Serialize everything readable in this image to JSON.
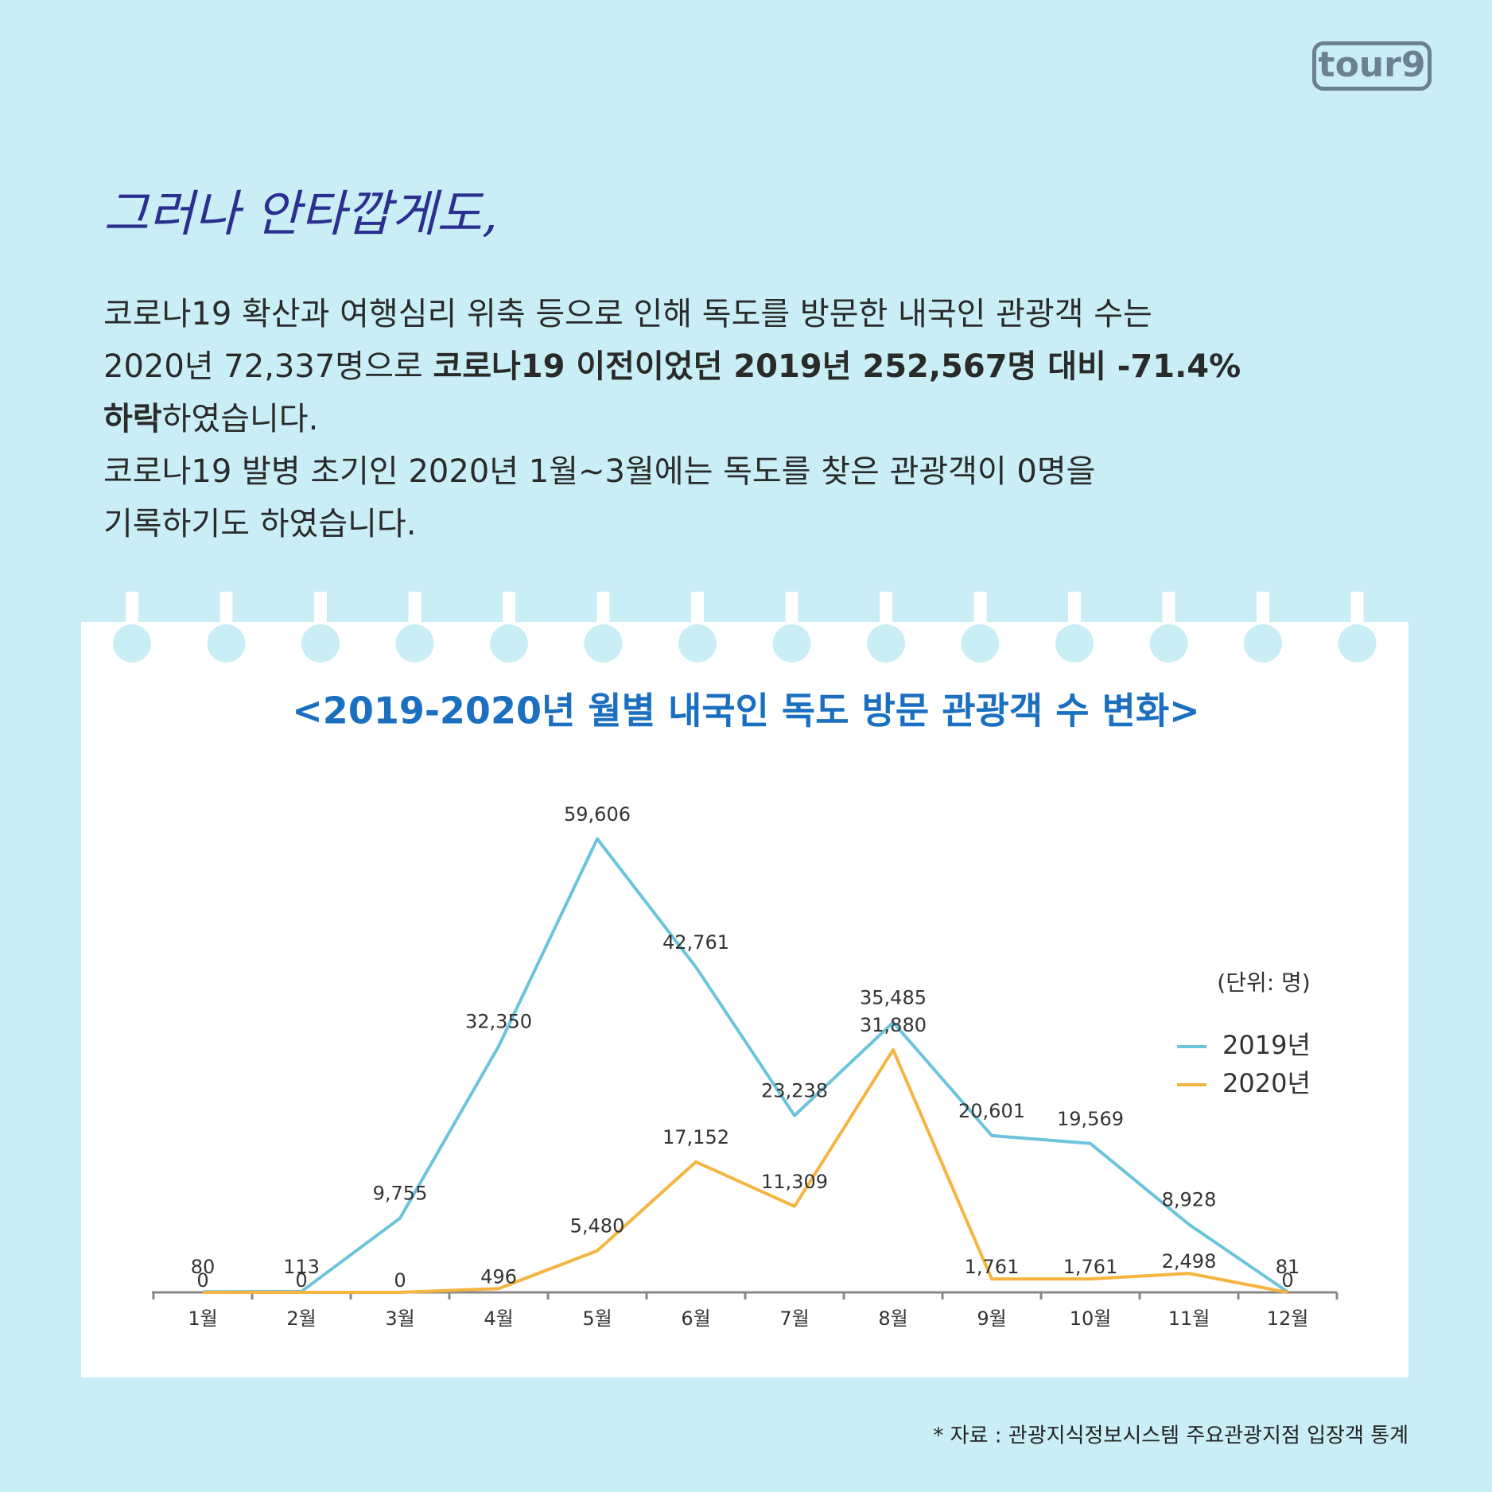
{
  "logo": "tour9",
  "heading": "그러나 안타깝게도,",
  "body": [
    [
      {
        "text": "코로나19 확산과 여행심리 위축 등으로 인해 독도를 방문한 내국인 관광객 수는"
      }
    ],
    [
      {
        "text": "2020년 72,337명으로 "
      },
      {
        "text": "코로나19 이전이었던 2019년 252,567명 대비 -71.4%",
        "bold": true
      }
    ],
    [
      {
        "text": "하락",
        "bold": true
      },
      {
        "text": "하였습니다."
      }
    ],
    [
      {
        "text": "코로나19 발병 초기인 2020년 1월~3월에는 독도를 찾은 관광객이 0명을"
      }
    ],
    [
      {
        "text": "기록하기도 하였습니다."
      }
    ]
  ],
  "chart_data": {
    "type": "line",
    "title": "<2019-2020년 월별 내국인 독도 방문 관광객 수 변화>",
    "unit_label": "(단위: 명)",
    "categories": [
      "1월",
      "2월",
      "3월",
      "4월",
      "5월",
      "6월",
      "7월",
      "8월",
      "9월",
      "10월",
      "11월",
      "12월"
    ],
    "series": [
      {
        "name": "2019년",
        "color": "#6cc4dc",
        "values": [
          80,
          113,
          9755,
          32350,
          59606,
          42761,
          23238,
          35485,
          20601,
          19569,
          8928,
          81
        ],
        "value_labels": [
          "80",
          "113",
          "9,755",
          "32,350",
          "59,606",
          "42,761",
          "23,238",
          "35,485",
          "20,601",
          "19,569",
          "8,928",
          "81"
        ]
      },
      {
        "name": "2020년",
        "color": "#f5b540",
        "values": [
          0,
          0,
          0,
          496,
          5480,
          17152,
          11309,
          31880,
          1761,
          1761,
          2498,
          0
        ],
        "value_labels": [
          "0",
          "0",
          "0",
          "496",
          "5,480",
          "17,152",
          "11,309",
          "31,880",
          "1,761",
          "1,761",
          "2,498",
          "0"
        ]
      }
    ],
    "ylim": [
      0,
      60000
    ],
    "legend": "right"
  },
  "source": "* 자료 : 관광지식정보시스템 주요관광지점 입장객 통계"
}
